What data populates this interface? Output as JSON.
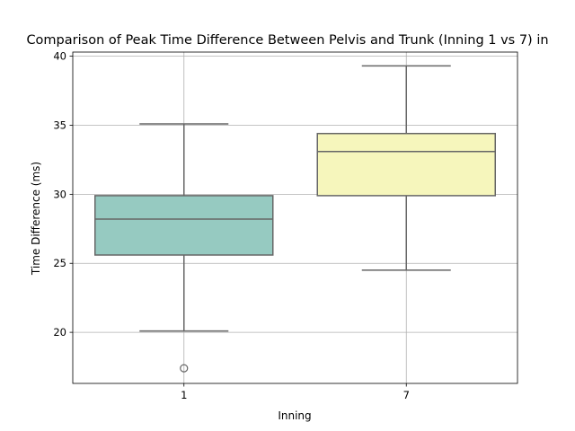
{
  "chart_data": {
    "type": "box",
    "title": "Comparison of Peak Time Difference Between Pelvis and Trunk (Inning 1 vs 7) in",
    "xlabel": "Inning",
    "ylabel": "Time Difference (ms)",
    "categories": [
      "1",
      "7"
    ],
    "ylim": [
      16.3,
      40.3
    ],
    "yticks": [
      20,
      25,
      30,
      35,
      40
    ],
    "grid": true,
    "boxes": [
      {
        "category": "1",
        "whisker_low": 20.1,
        "q1": 25.6,
        "median": 28.2,
        "q3": 29.9,
        "whisker_high": 35.1,
        "outliers": [
          17.4
        ],
        "color": "#96cac1"
      },
      {
        "category": "7",
        "whisker_low": 24.5,
        "q1": 29.9,
        "median": 33.1,
        "q3": 34.4,
        "whisker_high": 39.3,
        "outliers": [],
        "color": "#f6f6bc"
      }
    ],
    "line_color": "#666666"
  }
}
